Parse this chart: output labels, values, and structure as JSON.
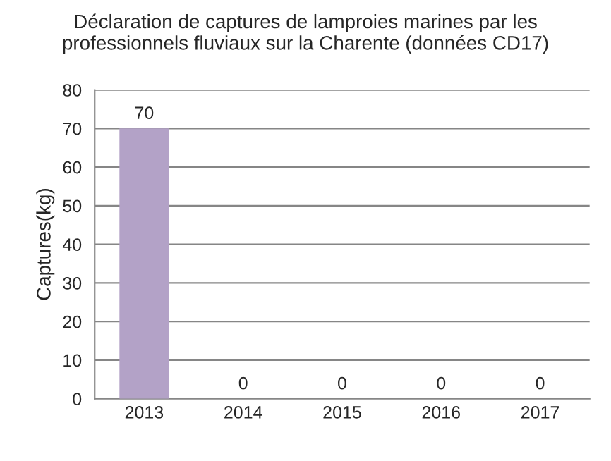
{
  "chart_data": {
    "type": "bar",
    "title": "Déclaration de captures de lamproies marines par les\nprofessionnels fluviaux sur la Charente (données CD17)",
    "ylabel": "Captures(kg)",
    "categories": [
      "2013",
      "2014",
      "2015",
      "2016",
      "2017"
    ],
    "values": [
      70,
      0,
      0,
      0,
      0
    ],
    "color": "#b3a2c7",
    "ylim": [
      0,
      80
    ],
    "yticks": [
      0,
      10,
      20,
      30,
      40,
      50,
      60,
      70,
      80
    ],
    "grid": "y",
    "data_labels": true
  }
}
